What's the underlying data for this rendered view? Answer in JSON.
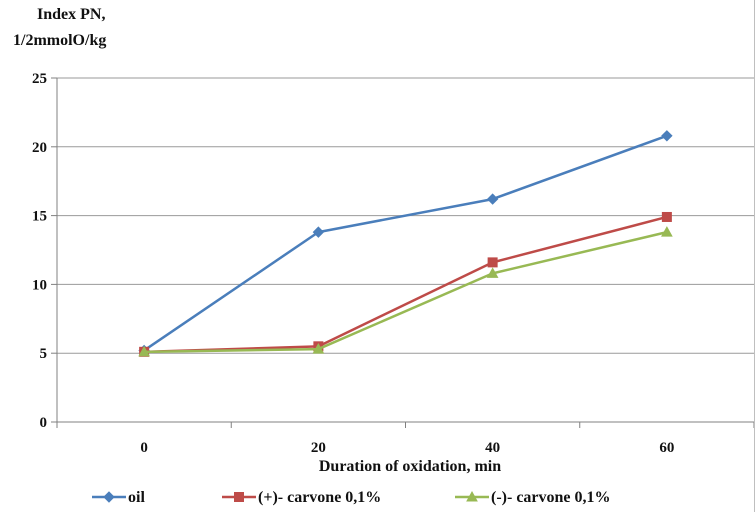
{
  "chart_data": {
    "type": "line",
    "title": "",
    "ylabel": "Index PN,",
    "ylabel_line2": "1/2mmolO/kg",
    "xlabel": "Duration of oxidation, min",
    "categories": [
      "0",
      "20",
      "40",
      "60"
    ],
    "x": [
      0,
      20,
      40,
      60
    ],
    "ylim": [
      0,
      25
    ],
    "yticks": [
      "0",
      "5",
      "10",
      "15",
      "20",
      "25"
    ],
    "grid": "horizontal",
    "legend_position": "bottom",
    "series": [
      {
        "name": "oil",
        "values": [
          5.2,
          13.8,
          16.2,
          20.8
        ],
        "color": "#4a7ebb",
        "marker": "diamond"
      },
      {
        "name": "(+)- carvone 0,1%",
        "values": [
          5.1,
          5.5,
          11.6,
          14.9
        ],
        "color": "#be4b48",
        "marker": "square"
      },
      {
        "name": "(-)- carvone 0,1%",
        "values": [
          5.1,
          5.3,
          10.8,
          13.8
        ],
        "color": "#98b954",
        "marker": "triangle"
      }
    ]
  }
}
